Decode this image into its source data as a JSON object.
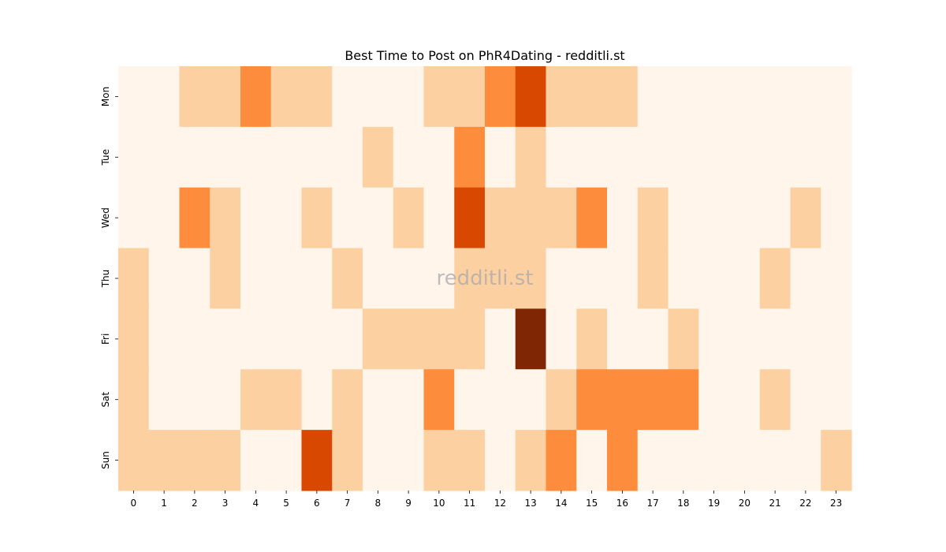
{
  "chart_data": {
    "type": "heatmap",
    "title": "Best Time to Post on PhR4Dating - redditli.st",
    "watermark": "redditli.st",
    "x": [
      "0",
      "1",
      "2",
      "3",
      "4",
      "5",
      "6",
      "7",
      "8",
      "9",
      "10",
      "11",
      "12",
      "13",
      "14",
      "15",
      "16",
      "17",
      "18",
      "19",
      "20",
      "21",
      "22",
      "23"
    ],
    "y": [
      "Mon",
      "Tue",
      "Wed",
      "Thu",
      "Fri",
      "Sat",
      "Sun"
    ],
    "values": [
      [
        0,
        0,
        1,
        1,
        2,
        1,
        1,
        0,
        0,
        0,
        1,
        1,
        2,
        3,
        1,
        1,
        1,
        0,
        0,
        0,
        0,
        0,
        0,
        0
      ],
      [
        0,
        0,
        0,
        0,
        0,
        0,
        0,
        0,
        1,
        0,
        0,
        2,
        0,
        1,
        0,
        0,
        0,
        0,
        0,
        0,
        0,
        0,
        0,
        0
      ],
      [
        0,
        0,
        2,
        1,
        0,
        0,
        1,
        0,
        0,
        1,
        0,
        3,
        1,
        1,
        1,
        2,
        0,
        1,
        0,
        0,
        0,
        0,
        1,
        0
      ],
      [
        1,
        0,
        0,
        1,
        0,
        0,
        0,
        1,
        0,
        0,
        0,
        1,
        1,
        1,
        0,
        0,
        0,
        1,
        0,
        0,
        0,
        1,
        0,
        0
      ],
      [
        1,
        0,
        0,
        0,
        0,
        0,
        0,
        0,
        1,
        1,
        1,
        1,
        0,
        4,
        0,
        1,
        0,
        0,
        1,
        0,
        0,
        0,
        0,
        0
      ],
      [
        1,
        0,
        0,
        0,
        1,
        1,
        0,
        1,
        0,
        0,
        2,
        0,
        0,
        0,
        1,
        2,
        2,
        2,
        2,
        0,
        0,
        1,
        0,
        0
      ],
      [
        1,
        1,
        1,
        1,
        0,
        0,
        3,
        1,
        0,
        0,
        1,
        1,
        0,
        1,
        2,
        0,
        2,
        0,
        0,
        0,
        0,
        0,
        0,
        1
      ]
    ],
    "colorscale": [
      "#fff5eb",
      "#fdd0a2",
      "#fd8d3c",
      "#d94801",
      "#7f2704"
    ],
    "grid": false,
    "colorbar": false
  }
}
